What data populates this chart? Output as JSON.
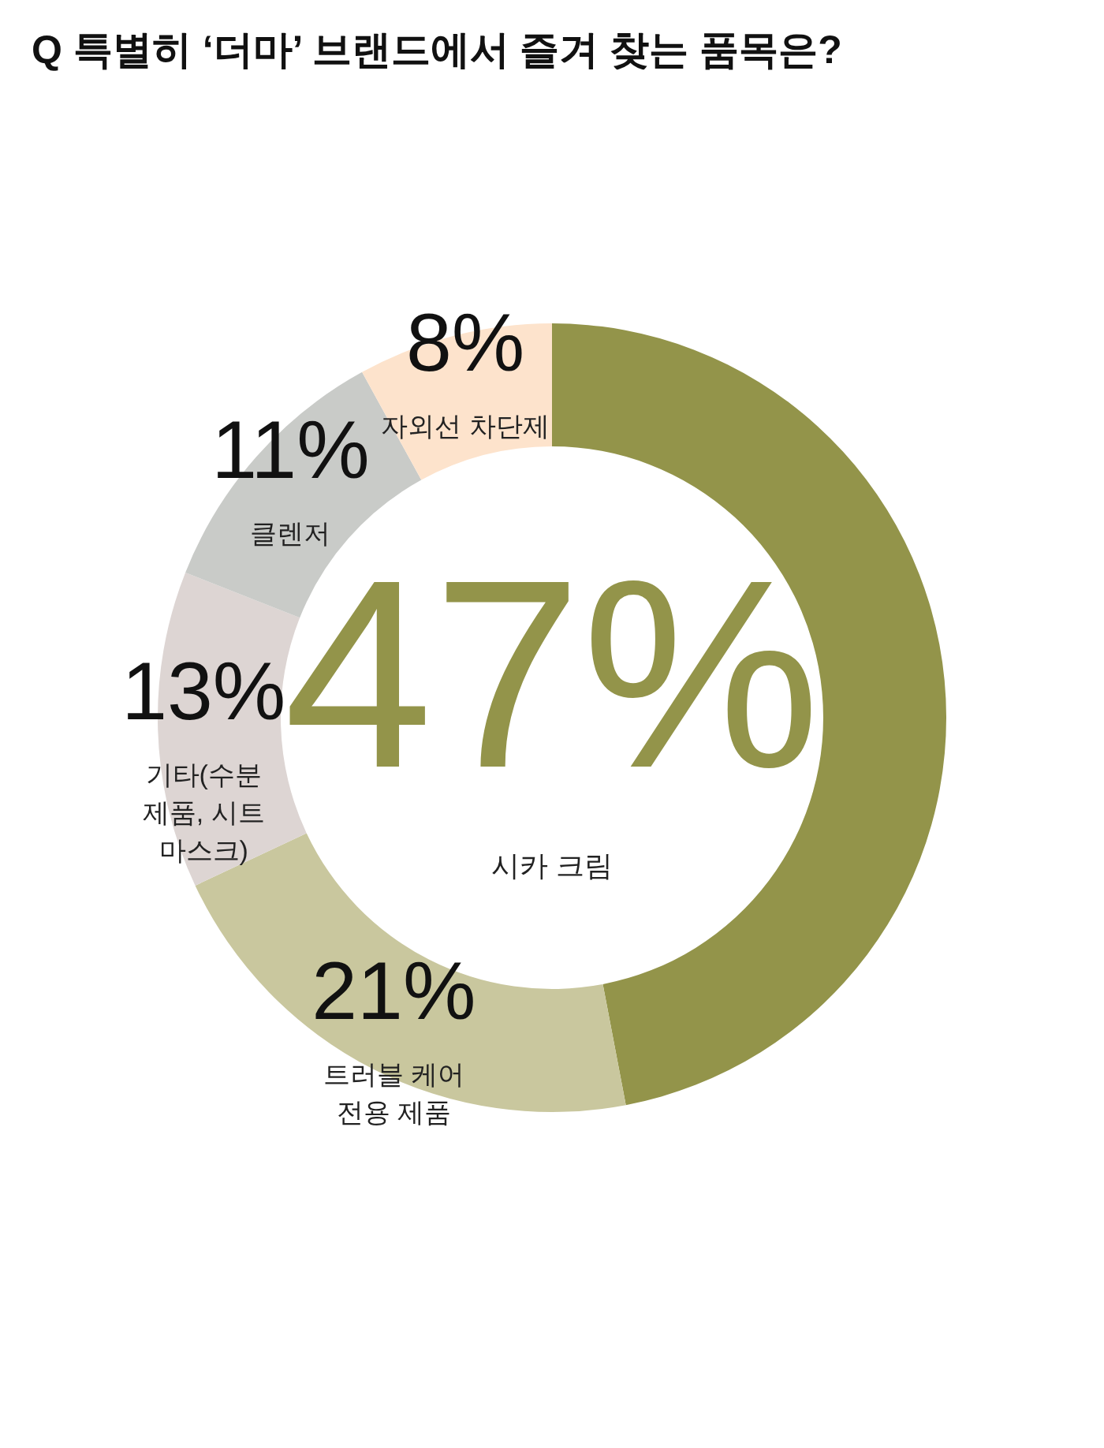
{
  "chart_data": {
    "type": "donut",
    "title": "Q 특별히 ‘더마’ 브랜드에서 즐겨 찾는 품목은?",
    "categories": [
      "시카 크림",
      "트러블 케어 전용 제품",
      "기타(수분 제품, 시트 마스크)",
      "클렌저",
      "자외선 차단제"
    ],
    "values": [
      47,
      21,
      13,
      11,
      8
    ],
    "value_labels": [
      "47%",
      "21%",
      "13%",
      "11%",
      "8%"
    ],
    "colors": [
      "#93944a",
      "#c9c79e",
      "#ddd5d3",
      "#c9cbc8",
      "#fde3cc"
    ],
    "legend": false
  }
}
